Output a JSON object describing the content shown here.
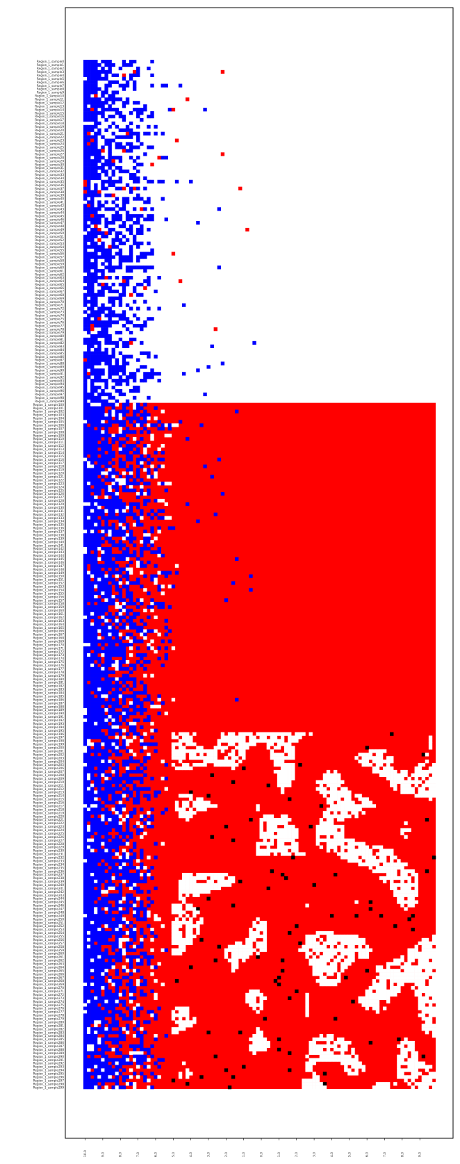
{
  "chart_data": {
    "type": "heatmap",
    "title": "",
    "xlabel": "",
    "ylabel": "",
    "row_label_prefix": "Region_1_sample",
    "row_count": 300,
    "column_count": 100,
    "x_tick_labels": [
      "10.0",
      "9.0",
      "8.0",
      "7.0",
      "6.0",
      "5.0",
      "4.0",
      "3.0",
      "2.0",
      "1.0",
      "0.0",
      "1.0",
      "2.0",
      "3.0",
      "4.0",
      "5.0",
      "6.0",
      "7.0",
      "8.0",
      "9.0"
    ],
    "x_tick_columns": [
      0,
      5,
      10,
      15,
      20,
      25,
      30,
      35,
      40,
      45,
      50,
      55,
      60,
      65,
      70,
      75,
      80,
      85,
      90,
      95
    ],
    "grid": false,
    "legend": "none",
    "colors": {
      "blue": "#0000ff",
      "red": "#ff0000",
      "white": "#ffffff",
      "black": "#000000"
    },
    "regions": [
      {
        "rows": [
          0,
          99
        ],
        "description_code": "blue-white",
        "blue_extent_col": [
          12,
          27
        ],
        "red_block": false
      },
      {
        "rows": [
          100,
          195
        ],
        "description_code": "blue-red",
        "blue_extent_col": [
          20,
          34
        ],
        "red_block": true
      },
      {
        "rows": [
          196,
          299
        ],
        "description_code": "blue-red-white-black",
        "blue_extent_col": [
          20,
          28
        ],
        "red_block": true
      }
    ]
  }
}
